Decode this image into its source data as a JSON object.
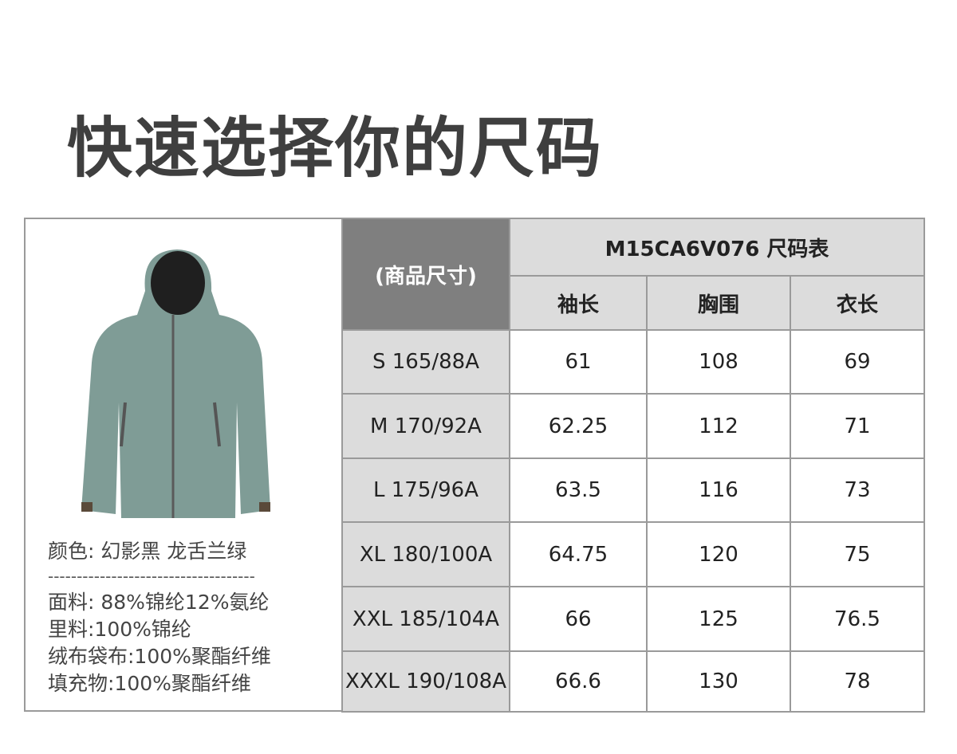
{
  "title": "快速选择你的尺码",
  "product": {
    "color_line": "颜色: 幻影黑 龙舌兰绿",
    "separator": "------------------------------------",
    "materials": [
      "面料: 88%锦纶12%氨纶",
      "里料:100%锦纶",
      "绒布袋布:100%聚酯纤维",
      "填充物:100%聚酯纤维"
    ],
    "jacket_color": "#7f9c96"
  },
  "table": {
    "corner_label": "(商品尺寸)",
    "caption": "M15CA6V076 尺码表",
    "columns": [
      "袖长",
      "胸围",
      "衣长"
    ],
    "rows": [
      {
        "size": "S 165/88A",
        "values": [
          "61",
          "108",
          "69"
        ]
      },
      {
        "size": "M 170/92A",
        "values": [
          "62.25",
          "112",
          "71"
        ]
      },
      {
        "size": "L 175/96A",
        "values": [
          "63.5",
          "116",
          "73"
        ]
      },
      {
        "size": "XL 180/100A",
        "values": [
          "64.75",
          "120",
          "75"
        ]
      },
      {
        "size": "XXL 185/104A",
        "values": [
          "66",
          "125",
          "76.5"
        ]
      },
      {
        "size": "XXXL 190/108A",
        "values": [
          "66.6",
          "130",
          "78"
        ]
      }
    ]
  }
}
